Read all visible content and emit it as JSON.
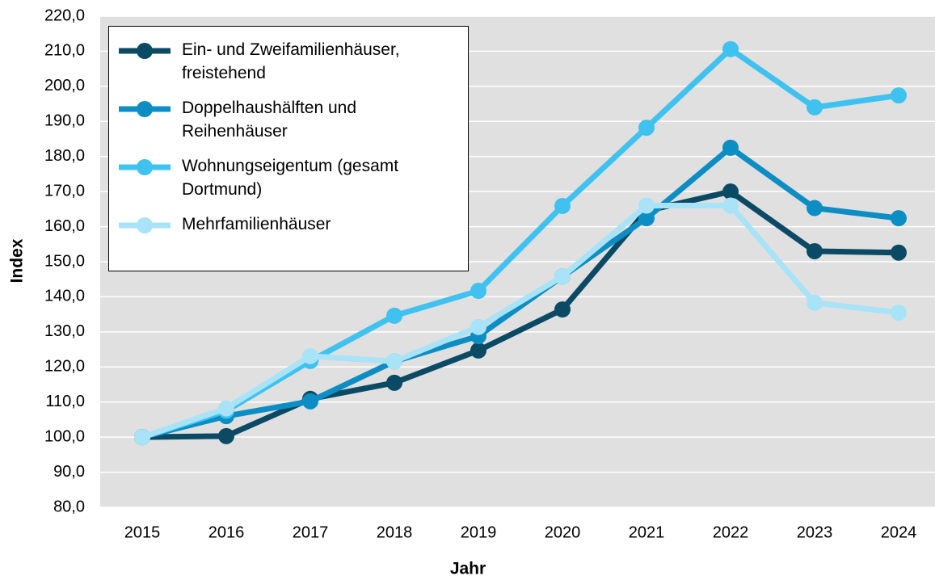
{
  "chart_data": {
    "type": "line",
    "x_label": "Jahr",
    "y_label": "Index",
    "categories": [
      "2015",
      "2016",
      "2017",
      "2018",
      "2019",
      "2020",
      "2021",
      "2022",
      "2023",
      "2024"
    ],
    "series": [
      {
        "name": "Ein- und Zweifamilienhäuser, freistehend",
        "color": "#0b4a64",
        "values": [
          100,
          100.3,
          110.9,
          115.5,
          124.7,
          136.4,
          164.5,
          170,
          153,
          152.6
        ]
      },
      {
        "name": "Doppelhaushälften und Reihenhäuser",
        "color": "#0c8ec4",
        "values": [
          100,
          106,
          110.2,
          121.6,
          128.8,
          145.8,
          162.4,
          182.5,
          165.3,
          162.4
        ]
      },
      {
        "name": "Wohnungseigentum (gesamt Dortmund)",
        "color": "#3fc2f0",
        "values": [
          100,
          107.5,
          121.7,
          134.6,
          141.7,
          165.9,
          188.2,
          210.6,
          194,
          197.4
        ]
      },
      {
        "name": "Mehrfamilienhäuser",
        "color": "#a9e3f8",
        "values": [
          100,
          108.2,
          123.1,
          121.6,
          131.4,
          145.8,
          166,
          166,
          138.3,
          135.5
        ]
      }
    ],
    "ylim": [
      80,
      220
    ],
    "yticks": [
      {
        "value": 80,
        "label": "80,0"
      },
      {
        "value": 90,
        "label": "90,0"
      },
      {
        "value": 100,
        "label": "100,0"
      },
      {
        "value": 110,
        "label": "110,0"
      },
      {
        "value": 120,
        "label": "120,0"
      },
      {
        "value": 130,
        "label": "130,0"
      },
      {
        "value": 140,
        "label": "140,0"
      },
      {
        "value": 150,
        "label": "150,0"
      },
      {
        "value": 160,
        "label": "160,0"
      },
      {
        "value": 170,
        "label": "170,0"
      },
      {
        "value": 180,
        "label": "180,0"
      },
      {
        "value": 190,
        "label": "190,0"
      },
      {
        "value": 200,
        "label": "200,0"
      },
      {
        "value": 210,
        "label": "210,0"
      },
      {
        "value": 220,
        "label": "220,0"
      }
    ],
    "grid": true,
    "legend": "upper left",
    "background": "#e0e0e0"
  }
}
